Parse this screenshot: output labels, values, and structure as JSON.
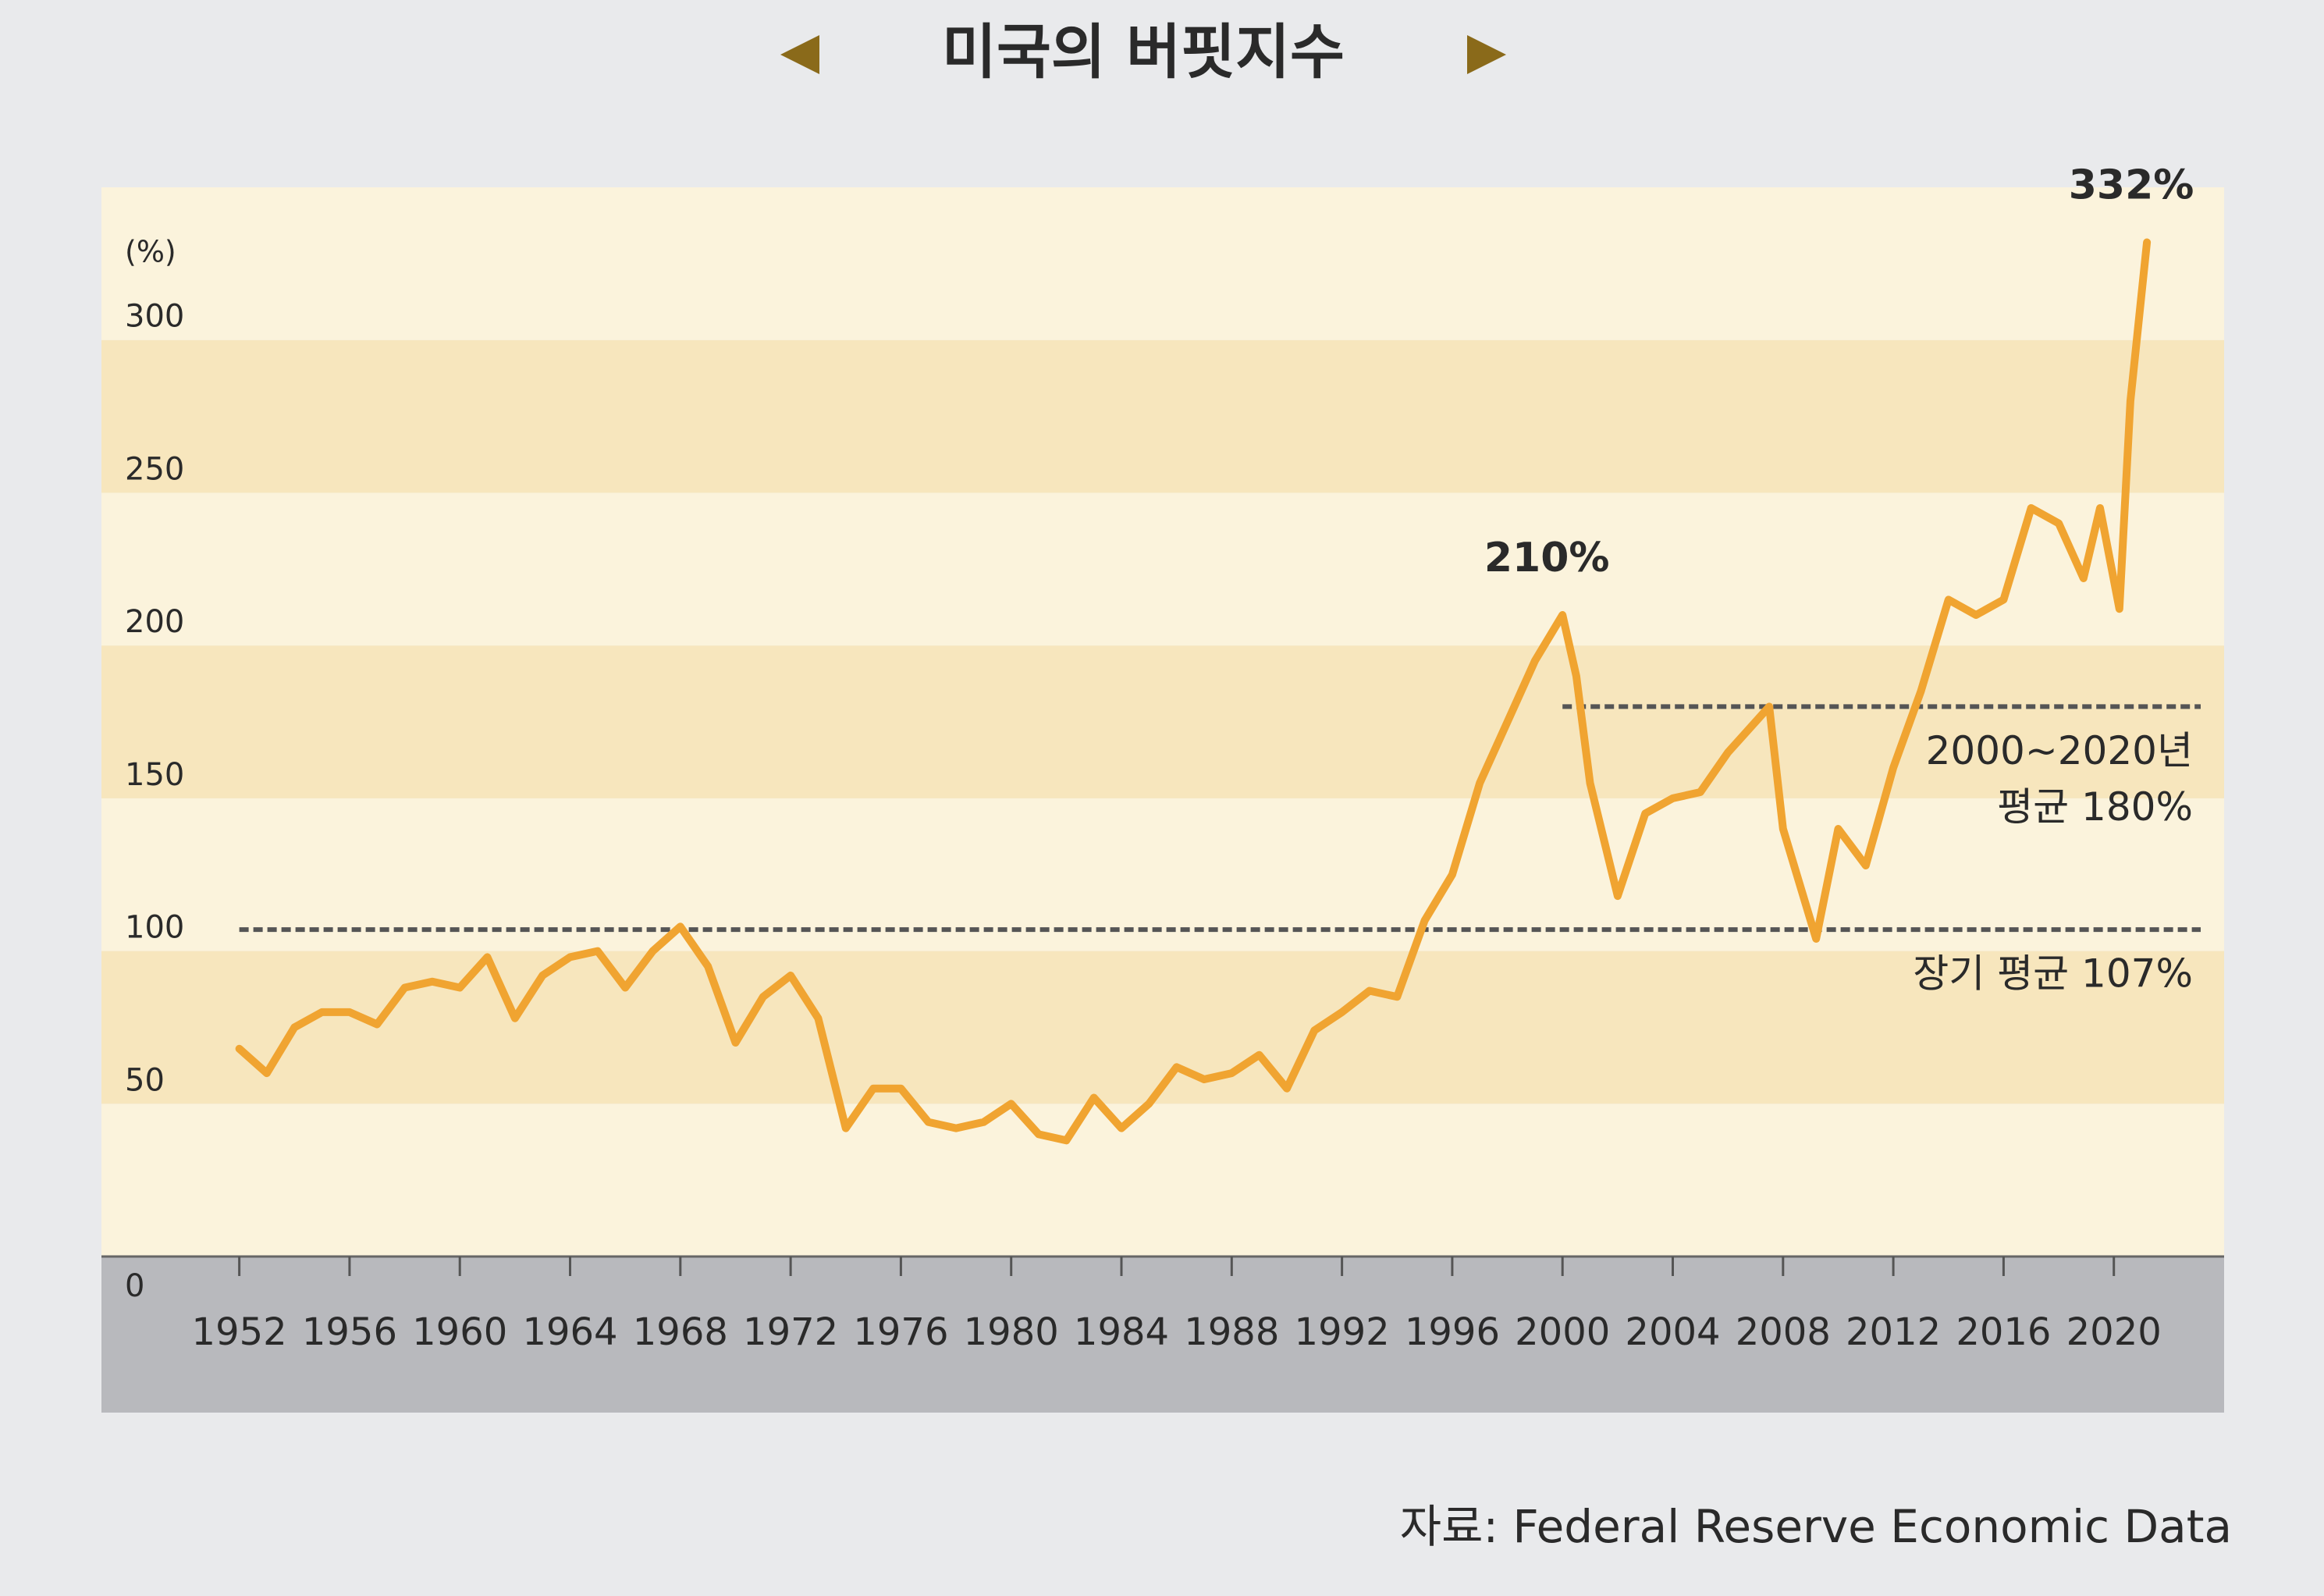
{
  "chart_data": {
    "type": "line",
    "title": "미국의 버핏지수",
    "y_label": "(%)",
    "source": "자료: Federal Reserve Economic Data",
    "color": "#f0a431",
    "x": [
      1952,
      1953,
      1954,
      1955,
      1956,
      1957,
      1958,
      1959,
      1960,
      1961,
      1962,
      1963,
      1964,
      1965,
      1966,
      1967,
      1968,
      1969,
      1970,
      1971,
      1972,
      1973,
      1974,
      1975,
      1976,
      1977,
      1978,
      1979,
      1980,
      1981,
      1982,
      1983,
      1984,
      1985,
      1986,
      1987,
      1988,
      1989,
      1990,
      1991,
      1992,
      1993,
      1994,
      1995,
      1996,
      1997,
      1998,
      1999,
      2000,
      2000.5,
      2001,
      2002,
      2003,
      2004,
      2005,
      2006,
      2007.5,
      2008,
      2009.2,
      2010,
      2011,
      2012,
      2013,
      2014,
      2015,
      2016,
      2017,
      2018,
      2018.9,
      2019.5,
      2020.2,
      2020.6,
      2021.2
    ],
    "values": [
      68,
      60,
      75,
      80,
      80,
      76,
      88,
      90,
      88,
      98,
      78,
      92,
      98,
      100,
      88,
      100,
      108,
      95,
      70,
      85,
      92,
      78,
      42,
      55,
      55,
      44,
      42,
      44,
      50,
      40,
      38,
      52,
      42,
      50,
      62,
      58,
      60,
      66,
      55,
      74,
      80,
      87,
      85,
      110,
      125,
      155,
      175,
      195,
      210,
      190,
      155,
      118,
      145,
      150,
      152,
      165,
      180,
      140,
      104,
      140,
      128,
      160,
      185,
      215,
      210,
      215,
      245,
      240,
      222,
      245,
      212,
      280,
      332
    ],
    "value_labels": [
      null,
      null,
      null,
      null,
      null,
      null,
      null,
      null,
      null,
      null,
      null,
      null,
      null,
      null,
      null,
      null,
      null,
      null,
      null,
      null,
      null,
      null,
      null,
      null,
      null,
      null,
      null,
      null,
      null,
      null,
      null,
      null,
      null,
      null,
      null,
      null,
      null,
      null,
      null,
      null,
      null,
      null,
      null,
      null,
      null,
      null,
      null,
      null,
      "210%",
      null,
      null,
      null,
      null,
      null,
      null,
      null,
      null,
      null,
      null,
      null,
      null,
      null,
      null,
      null,
      null,
      null,
      null,
      null,
      null,
      null,
      null,
      null,
      "332%"
    ],
    "reference_lines": [
      {
        "value": 180,
        "start": 2000,
        "label": [
          "2000~2020년",
          "평균 180%"
        ]
      },
      {
        "value": 107,
        "start": 1952,
        "label": [
          "장기 평균 107%"
        ]
      }
    ],
    "xlim": [
      1947,
      2024
    ],
    "xticks": [
      1952,
      1956,
      1960,
      1964,
      1968,
      1972,
      1976,
      1980,
      1984,
      1988,
      1992,
      1996,
      2000,
      2004,
      2008,
      2012,
      2016,
      2020
    ],
    "ylim": [
      0,
      350
    ],
    "yticks": [
      0,
      50,
      100,
      150,
      200,
      250,
      300
    ]
  }
}
